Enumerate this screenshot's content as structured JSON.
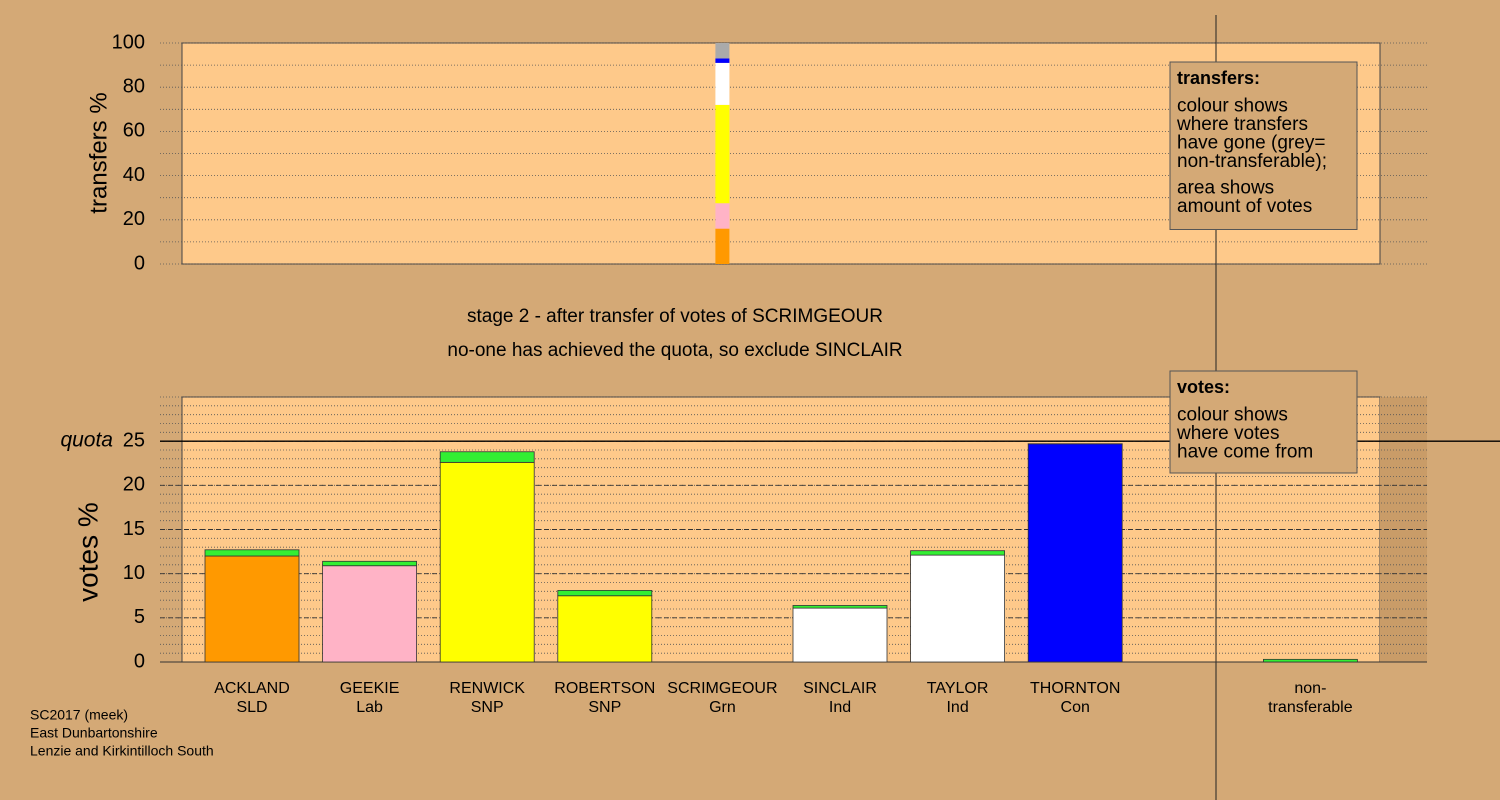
{
  "chart_data": [
    {
      "type": "bar",
      "stacked": true,
      "ylabel": "transfers %",
      "ylim": [
        0,
        100
      ],
      "yticks": [
        0,
        20,
        40,
        60,
        80,
        100
      ],
      "minor_grid": 10,
      "series": [
        {
          "color": "#ff9900",
          "values": [
            null,
            null,
            null,
            null,
            16,
            null,
            null,
            null,
            null,
            null
          ]
        },
        {
          "color": "#ffb3c6",
          "values": [
            null,
            null,
            null,
            null,
            11.5,
            null,
            null,
            null,
            null,
            null
          ]
        },
        {
          "color": "#ffff00",
          "values": [
            null,
            null,
            null,
            null,
            44.5,
            null,
            null,
            null,
            null,
            null
          ]
        },
        {
          "color": "#ffffff",
          "values": [
            null,
            null,
            null,
            null,
            19,
            null,
            null,
            null,
            null,
            null
          ]
        },
        {
          "color": "#0000ff",
          "values": [
            null,
            null,
            null,
            null,
            2,
            null,
            null,
            null,
            null,
            null
          ]
        },
        {
          "color": "#aaaaaa",
          "values": [
            null,
            null,
            null,
            null,
            7,
            null,
            null,
            null,
            null,
            null
          ]
        }
      ],
      "legend_box": {
        "title": "transfers:",
        "paragraphs": [
          [
            "colour shows",
            "where transfers",
            "have gone (grey=",
            "non-transferable);"
          ],
          [
            "area shows",
            "amount of votes"
          ]
        ]
      }
    },
    {
      "type": "bar",
      "stacked": true,
      "ylabel": "votes %",
      "categories": [
        "ACKLAND",
        "GEEKIE",
        "RENWICK",
        "ROBERTSON",
        "SCRIMGEOUR",
        "SINCLAIR",
        "TAYLOR",
        "THORNTON",
        null,
        "non-"
      ],
      "sublabels": [
        "SLD",
        "Lab",
        "SNP",
        "SNP",
        "Grn",
        "Ind",
        "Ind",
        "Con",
        null,
        "transferable"
      ],
      "ylim": [
        0,
        30
      ],
      "yticks": [
        0,
        5,
        10,
        15,
        20,
        25
      ],
      "minor_grid": 1,
      "quota": {
        "value": 25,
        "label": "quota"
      },
      "series": [
        {
          "colors": [
            "#ff9900",
            "#ffb3c6",
            "#ffff00",
            "#ffff00",
            "#33cc33",
            "#ffffff",
            "#ffffff",
            "#0000ff",
            null,
            "#aaaaaa"
          ],
          "values": [
            12.0,
            10.9,
            22.6,
            7.5,
            0,
            6.1,
            12.1,
            24.7,
            null,
            0
          ]
        },
        {
          "color": "#33ee33",
          "values": [
            0.7,
            0.5,
            1.2,
            0.6,
            0,
            0.3,
            0.5,
            0,
            null,
            0.3
          ]
        }
      ],
      "legend_box": {
        "title": "votes:",
        "paragraphs": [
          [
            "colour shows",
            "where votes",
            "have come from"
          ]
        ]
      }
    }
  ],
  "stage_text": [
    "stage 2 - after transfer of votes of SCRIMGEOUR",
    "no-one has achieved the quota, so exclude SINCLAIR"
  ],
  "footer": [
    "SC2017 (meek)",
    "East Dunbartonshire",
    "Lenzie and Kirkintilloch South"
  ]
}
